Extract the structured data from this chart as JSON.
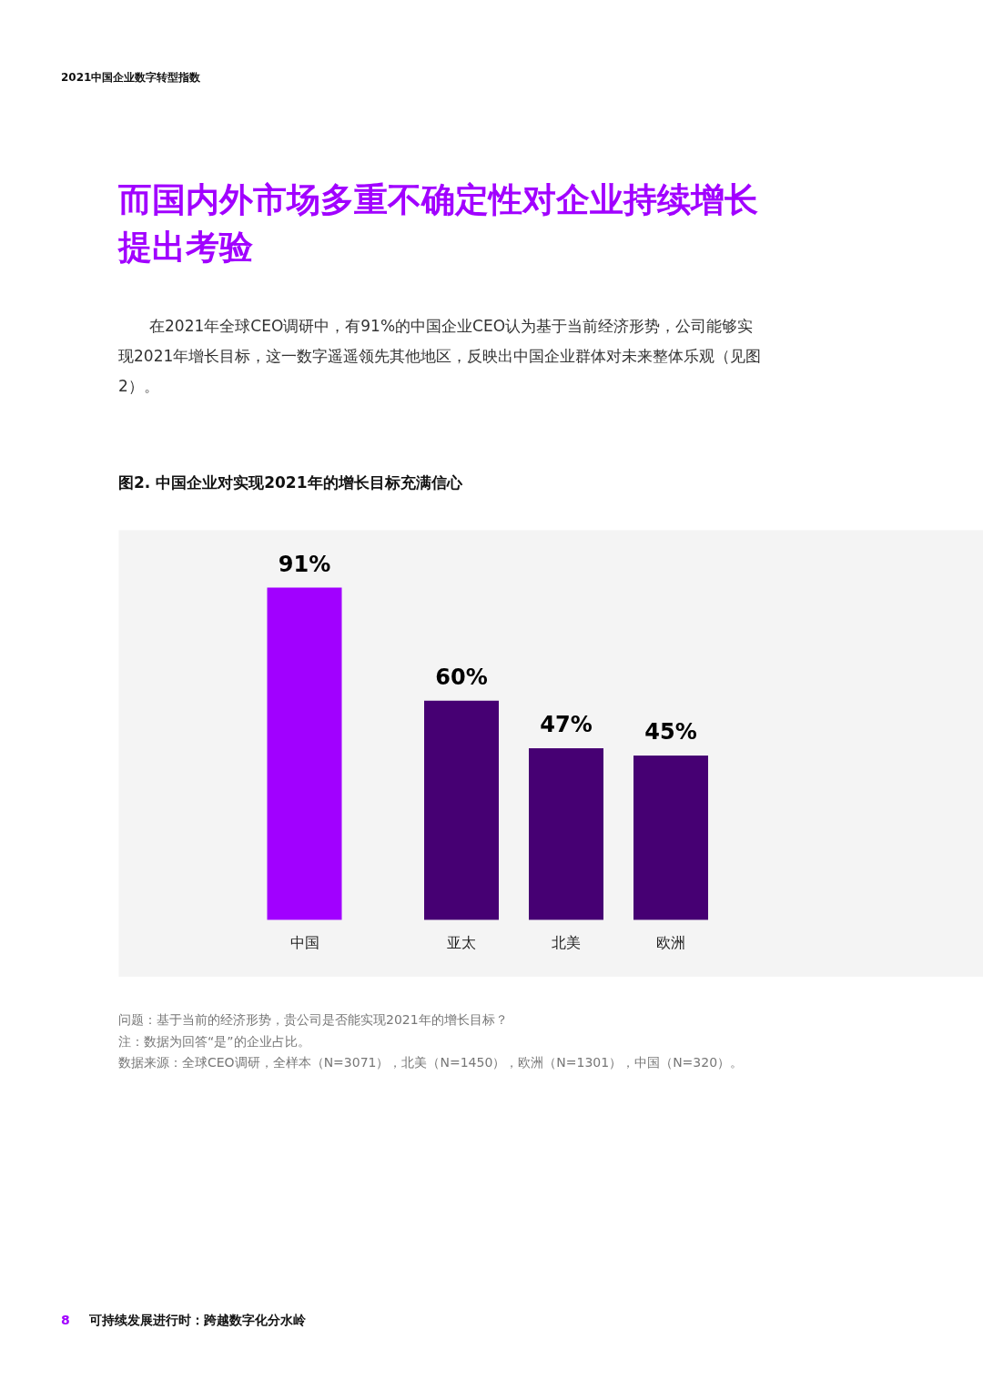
{
  "chart_data": {
    "type": "bar",
    "title": "图2. 中国企业对实现2021年的增长目标充满信心",
    "categories": [
      "中国",
      "亚太",
      "北美",
      "欧洲"
    ],
    "values": [
      91,
      60,
      47,
      45
    ],
    "value_labels": [
      "91%",
      "60%",
      "47%",
      "45%"
    ],
    "colors": [
      "#a100ff",
      "#460073",
      "#460073",
      "#460073"
    ],
    "annotations": [
      "2021中国企业数字转型指数",
      "而国内外市场多重不确定性对企业持续增长提出考验",
      "在2021年全球CEO调研中，有91%的中国企业CEO认为基于当前经济形势，公司能够实现2021年增长目标，这一数字遥遥领先其他地区，反映出中国企业群体对未来整体乐观（见图2）。",
      "问题：基于当前的经济形势，贵公司是否能实现2021年的增长目标？",
      "注：数据为回答“是”的企业占比。",
      "数据来源：全球CEO调研，全样本（N=3071），北美（N=1450），欧洲（N=1301），中国（N=320）。",
      "8",
      "可持续发展进行时：跨越数字化分水岭"
    ]
  }
}
